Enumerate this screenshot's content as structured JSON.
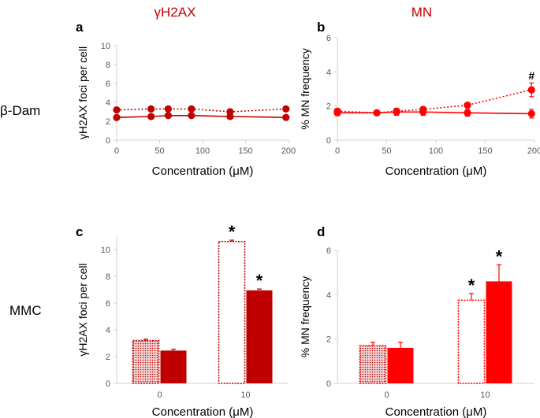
{
  "figure": {
    "col_titles": [
      "γH2AX",
      "MN"
    ],
    "row_labels": [
      "β-Dam",
      "MMC"
    ],
    "colors": {
      "gh2ax": "#c00000",
      "mn": "#ff0000",
      "title_color": "#c00000"
    }
  },
  "chart_data": [
    {
      "panel": "a",
      "type": "line",
      "title": "",
      "xlabel": "Concentration (μM)",
      "ylabel": "γH2AX foci per cell",
      "xlim": [
        0,
        200
      ],
      "ylim": [
        0,
        10
      ],
      "xticks": [
        0,
        50,
        100,
        150,
        200
      ],
      "yticks": [
        0,
        2,
        4,
        6,
        8,
        10
      ],
      "series": [
        {
          "name": "dotted",
          "style": "dotted",
          "x": [
            0,
            40,
            60,
            87,
            132,
            197
          ],
          "y": [
            3.2,
            3.3,
            3.3,
            3.3,
            3.0,
            3.3
          ],
          "err": [
            0,
            0,
            0,
            0,
            0,
            0
          ]
        },
        {
          "name": "solid",
          "style": "solid",
          "x": [
            0,
            40,
            60,
            87,
            132,
            197
          ],
          "y": [
            2.4,
            2.5,
            2.6,
            2.6,
            2.5,
            2.4
          ],
          "err": [
            0,
            0,
            0,
            0,
            0,
            0
          ]
        }
      ],
      "annotations": []
    },
    {
      "panel": "b",
      "type": "line",
      "title": "",
      "xlabel": "Concentration (μM)",
      "ylabel": "% MN frequency",
      "xlim": [
        0,
        200
      ],
      "ylim": [
        0,
        6
      ],
      "xticks": [
        0,
        50,
        100,
        150,
        200
      ],
      "yticks": [
        0,
        2,
        4,
        6
      ],
      "series": [
        {
          "name": "dotted",
          "style": "dotted",
          "x": [
            0,
            40,
            60,
            87,
            132,
            197
          ],
          "y": [
            1.7,
            1.6,
            1.7,
            1.8,
            2.05,
            2.95
          ],
          "err": [
            0.1,
            0.05,
            0.15,
            0.15,
            0.05,
            0.4
          ]
        },
        {
          "name": "solid",
          "style": "solid",
          "x": [
            0,
            40,
            60,
            87,
            132,
            197
          ],
          "y": [
            1.6,
            1.6,
            1.65,
            1.65,
            1.6,
            1.55
          ],
          "err": [
            0.15,
            0.05,
            0.2,
            0.2,
            0.2,
            0.25
          ]
        }
      ],
      "annotations": [
        {
          "text": "#",
          "x": 197,
          "y": 3.55
        }
      ]
    },
    {
      "panel": "c",
      "type": "bar",
      "title": "",
      "xlabel": "Concentration (μM)",
      "ylabel": "γH2AX foci per cell",
      "categories": [
        "0",
        "10"
      ],
      "ylim": [
        0,
        11
      ],
      "yticks": [
        0,
        2,
        4,
        6,
        8,
        10
      ],
      "series": [
        {
          "name": "hatched",
          "style": "dotted",
          "values": [
            3.2,
            10.6
          ],
          "err": [
            0.1,
            0.1
          ]
        },
        {
          "name": "filled",
          "style": "solid",
          "values": [
            2.45,
            6.95
          ],
          "err": [
            0.1,
            0.1
          ]
        }
      ],
      "annotations": [
        {
          "text": "*",
          "category": 1,
          "series": 0
        },
        {
          "text": "*",
          "category": 1,
          "series": 1
        }
      ]
    },
    {
      "panel": "d",
      "type": "bar",
      "title": "",
      "xlabel": "Concentration (μM)",
      "ylabel": "% MN frequency",
      "categories": [
        "0",
        "10"
      ],
      "ylim": [
        0,
        6
      ],
      "yticks": [
        0,
        2,
        4,
        6
      ],
      "series": [
        {
          "name": "hatched",
          "style": "dotted",
          "values": [
            1.7,
            3.75
          ],
          "err": [
            0.15,
            0.3
          ]
        },
        {
          "name": "filled",
          "style": "solid",
          "values": [
            1.6,
            4.6
          ],
          "err": [
            0.25,
            0.75
          ]
        }
      ],
      "annotations": [
        {
          "text": "*",
          "category": 1,
          "series": 0
        },
        {
          "text": "*",
          "category": 1,
          "series": 1
        }
      ]
    }
  ]
}
